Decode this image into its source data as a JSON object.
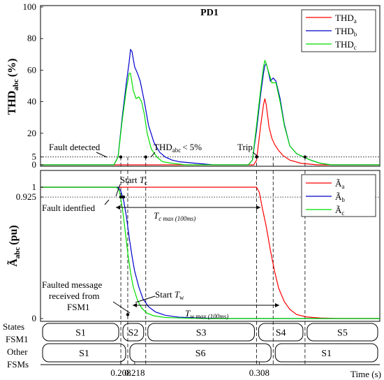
{
  "chart_data": [
    {
      "type": "line",
      "panel": "top",
      "title": "PD1",
      "ylabel": "THD",
      "ylabel_sub": "abc",
      "ylabel_unit": "(%)",
      "ylim": [
        0,
        100
      ],
      "yticks": [
        0,
        5,
        20,
        40,
        60,
        80,
        100
      ],
      "legend_position": "top-right",
      "threshold": 5,
      "series": [
        {
          "name": "THD",
          "sub": "a",
          "color": "#ff0000",
          "points": [
            [
              0.15,
              0
            ],
            [
              0.304,
              0
            ],
            [
              0.306,
              3
            ],
            [
              0.309,
              25
            ],
            [
              0.311,
              38
            ],
            [
              0.312,
              42
            ],
            [
              0.313,
              38
            ],
            [
              0.315,
              24
            ],
            [
              0.317,
              17
            ],
            [
              0.319,
              13
            ],
            [
              0.322,
              9
            ],
            [
              0.325,
              6
            ],
            [
              0.33,
              3
            ],
            [
              0.338,
              1
            ],
            [
              0.35,
              0
            ],
            [
              0.395,
              0
            ]
          ]
        },
        {
          "name": "THD",
          "sub": "b",
          "color": "#0000cc",
          "points": [
            [
              0.15,
              0
            ],
            [
              0.203,
              0
            ],
            [
              0.206,
              5
            ],
            [
              0.209,
              30
            ],
            [
              0.212,
              52
            ],
            [
              0.214,
              65
            ],
            [
              0.215,
              73
            ],
            [
              0.216,
              72
            ],
            [
              0.218,
              62
            ],
            [
              0.22,
              58
            ],
            [
              0.222,
              53
            ],
            [
              0.225,
              40
            ],
            [
              0.228,
              25
            ],
            [
              0.232,
              14
            ],
            [
              0.236,
              8
            ],
            [
              0.24,
              5
            ],
            [
              0.245,
              3
            ],
            [
              0.25,
              2
            ],
            [
              0.262,
              1
            ],
            [
              0.275,
              0
            ],
            [
              0.3,
              0
            ],
            [
              0.303,
              3
            ],
            [
              0.306,
              22
            ],
            [
              0.309,
              45
            ],
            [
              0.311,
              58
            ],
            [
              0.312,
              63
            ],
            [
              0.313,
              64
            ],
            [
              0.314,
              61
            ],
            [
              0.316,
              53
            ],
            [
              0.318,
              55
            ],
            [
              0.32,
              53
            ],
            [
              0.323,
              42
            ],
            [
              0.326,
              26
            ],
            [
              0.33,
              12
            ],
            [
              0.335,
              7
            ],
            [
              0.34,
              5
            ],
            [
              0.345,
              3
            ],
            [
              0.352,
              1
            ],
            [
              0.36,
              0
            ],
            [
              0.395,
              0
            ]
          ]
        },
        {
          "name": "THD",
          "sub": "c",
          "color": "#00dd00",
          "points": [
            [
              0.15,
              0
            ],
            [
              0.203,
              0
            ],
            [
              0.206,
              5
            ],
            [
              0.209,
              28
            ],
            [
              0.212,
              48
            ],
            [
              0.214,
              58
            ],
            [
              0.215,
              58
            ],
            [
              0.217,
              47
            ],
            [
              0.219,
              42
            ],
            [
              0.221,
              43
            ],
            [
              0.223,
              40
            ],
            [
              0.225,
              32
            ],
            [
              0.227,
              20
            ],
            [
              0.23,
              10
            ],
            [
              0.234,
              5
            ],
            [
              0.238,
              2
            ],
            [
              0.245,
              1
            ],
            [
              0.255,
              0
            ],
            [
              0.3,
              0
            ],
            [
              0.303,
              3
            ],
            [
              0.306,
              25
            ],
            [
              0.309,
              48
            ],
            [
              0.311,
              62
            ],
            [
              0.312,
              66
            ],
            [
              0.313,
              64
            ],
            [
              0.315,
              58
            ],
            [
              0.317,
              52
            ],
            [
              0.32,
              52
            ],
            [
              0.323,
              40
            ],
            [
              0.326,
              25
            ],
            [
              0.33,
              12
            ],
            [
              0.335,
              7
            ],
            [
              0.34,
              5
            ],
            [
              0.345,
              3
            ],
            [
              0.352,
              1
            ],
            [
              0.36,
              0
            ],
            [
              0.395,
              0
            ]
          ]
        }
      ],
      "annotations": {
        "fault_detected": "Fault detected",
        "thd_threshold_prefix": "THD",
        "thd_threshold_sub": "abc",
        "thd_threshold_suffix": "< 5%",
        "trip": "Trip"
      },
      "markers": [
        [
          0.208,
          5
        ],
        [
          0.226,
          5
        ],
        [
          0.306,
          5
        ],
        [
          0.341,
          5
        ]
      ]
    },
    {
      "type": "line",
      "panel": "bottom",
      "ylabel": "Ã",
      "ylabel_sub": "abc",
      "ylabel_unit": "(pu)",
      "ylim": [
        0,
        1
      ],
      "yticks": [
        0,
        0.925,
        1
      ],
      "ytick_labels": [
        "0",
        "0.925",
        "1"
      ],
      "legend_position": "top-right",
      "threshold": 0.925,
      "series": [
        {
          "name": "Ã",
          "sub": "a",
          "color": "#ff0000",
          "points": [
            [
              0.15,
              1
            ],
            [
              0.306,
              1
            ],
            [
              0.308,
              0.96
            ],
            [
              0.31,
              0.85
            ],
            [
              0.313,
              0.7
            ],
            [
              0.316,
              0.52
            ],
            [
              0.319,
              0.36
            ],
            [
              0.322,
              0.23
            ],
            [
              0.326,
              0.13
            ],
            [
              0.33,
              0.07
            ],
            [
              0.335,
              0.03
            ],
            [
              0.342,
              0.012
            ],
            [
              0.352,
              0.004
            ],
            [
              0.365,
              0
            ],
            [
              0.395,
              0
            ]
          ]
        },
        {
          "name": "Ã",
          "sub": "b",
          "color": "#0000cc",
          "points": [
            [
              0.15,
              1
            ],
            [
              0.206,
              1
            ],
            [
              0.208,
              0.97
            ],
            [
              0.21,
              0.9
            ],
            [
              0.212,
              0.78
            ],
            [
              0.214,
              0.62
            ],
            [
              0.216,
              0.48
            ],
            [
              0.218,
              0.36
            ],
            [
              0.221,
              0.24
            ],
            [
              0.224,
              0.15
            ],
            [
              0.228,
              0.09
            ],
            [
              0.233,
              0.05
            ],
            [
              0.24,
              0.025
            ],
            [
              0.25,
              0.01
            ],
            [
              0.265,
              0.004
            ],
            [
              0.285,
              0
            ],
            [
              0.395,
              0
            ]
          ]
        },
        {
          "name": "Ã",
          "sub": "c",
          "color": "#00dd00",
          "points": [
            [
              0.15,
              1
            ],
            [
              0.205,
              1
            ],
            [
              0.207,
              0.97
            ],
            [
              0.209,
              0.85
            ],
            [
              0.211,
              0.68
            ],
            [
              0.213,
              0.5
            ],
            [
              0.215,
              0.35
            ],
            [
              0.217,
              0.24
            ],
            [
              0.22,
              0.14
            ],
            [
              0.223,
              0.08
            ],
            [
              0.227,
              0.04
            ],
            [
              0.232,
              0.02
            ],
            [
              0.24,
              0.008
            ],
            [
              0.255,
              0.003
            ],
            [
              0.27,
              0
            ],
            [
              0.395,
              0
            ]
          ]
        }
      ],
      "annotations": {
        "start_tc": "Start ",
        "tc_symbol": "T",
        "tc_sub": "c",
        "fault_identified": "Fault identfied",
        "tc_max_symbol": "T",
        "tc_max_sub": "c max (100ms)",
        "faulted_msg_line1": "Faulted message",
        "faulted_msg_line2": "received from",
        "faulted_msg_line3": "FSM1",
        "start_tw": "Start ",
        "tw_symbol": "T",
        "tw_sub": "w",
        "tw_max_symbol": "T",
        "tw_max_sub": "w max (100ms)"
      },
      "markers": [
        [
          0.208,
          0.925
        ],
        [
          0.21,
          0.925
        ],
        [
          0.213,
          0.03
        ]
      ]
    }
  ],
  "states": {
    "label_line1": "States",
    "label_line2": "FSM1",
    "fsm1": [
      {
        "label": "S1",
        "start": 0.15,
        "end": 0.208
      },
      {
        "label": "S2",
        "start": 0.208,
        "end": 0.226
      },
      {
        "label": "S3",
        "start": 0.226,
        "end": 0.306
      },
      {
        "label": "S4",
        "start": 0.306,
        "end": 0.341
      },
      {
        "label": "S5",
        "start": 0.341,
        "end": 0.395
      }
    ],
    "other_label_line1": "Other",
    "other_label_line2": "FSMs",
    "other": [
      {
        "label": "S1",
        "start": 0.15,
        "end": 0.213
      },
      {
        "label": "S6",
        "start": 0.213,
        "end": 0.318
      },
      {
        "label": "S1",
        "start": 0.318,
        "end": 0.395
      }
    ]
  },
  "x_axis": {
    "label": "Time (s)",
    "ticks": [
      {
        "v": 0.208,
        "label": "0.208"
      },
      {
        "v": 0.218,
        "label": "0.218"
      },
      {
        "v": 0.308,
        "label": "0.308"
      }
    ],
    "vlines": [
      0.208,
      0.213,
      0.226,
      0.306,
      0.318,
      0.341
    ]
  }
}
